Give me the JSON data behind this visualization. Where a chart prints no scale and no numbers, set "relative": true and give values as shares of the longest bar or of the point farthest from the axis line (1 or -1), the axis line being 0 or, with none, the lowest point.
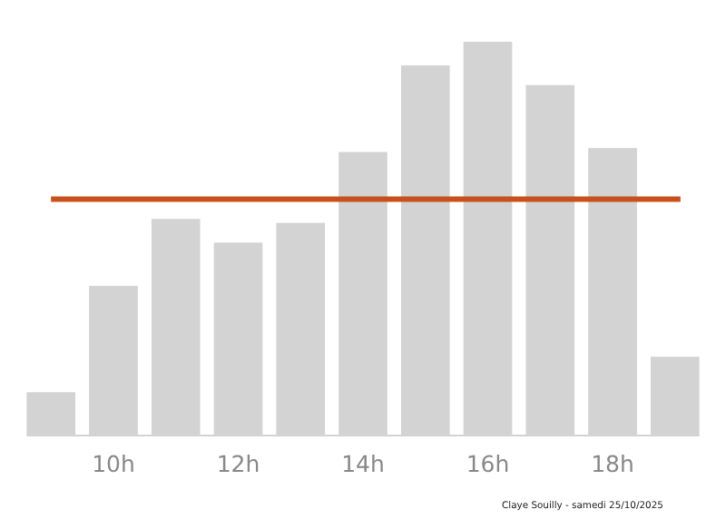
{
  "chart_data": {
    "type": "bar",
    "relative": true,
    "categories": [
      null,
      "10h",
      null,
      "12h",
      null,
      "14h",
      null,
      "16h",
      null,
      "18h",
      null
    ],
    "values": [
      0.11,
      0.38,
      0.55,
      0.49,
      0.54,
      0.72,
      0.94,
      1,
      0.89,
      0.73,
      0.2
    ],
    "color": "#d3d3d3",
    "ref_lines": [
      {
        "axis": "y",
        "value": 0.6,
        "color": "#c8511b"
      }
    ],
    "annotations": [
      "Claye Souilly - samedi 25/10/2025"
    ],
    "line_style": "solid"
  }
}
